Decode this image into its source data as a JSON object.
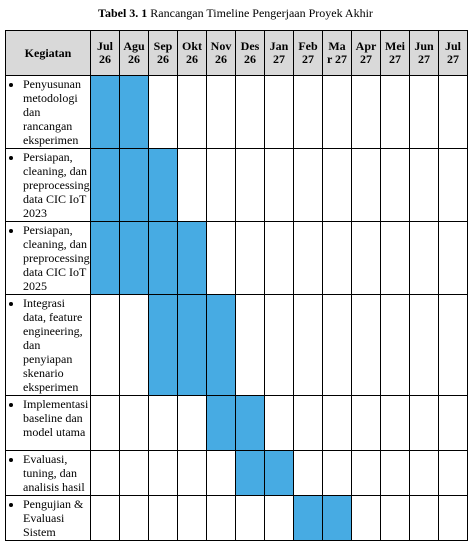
{
  "caption": {
    "label": "Tabel 3. 1",
    "title": "Rancangan Timeline Pengerjaan Proyek Akhir"
  },
  "table": {
    "header": "Kegiatan",
    "months": [
      "Jul 26",
      "Agu 26",
      "Sep 26",
      "Okt 26",
      "Nov 26",
      "Des 26",
      "Jan 27",
      "Feb 27",
      "Mar 27",
      "Apr 27",
      "Mei 27",
      "Jun 27",
      "Jul 27"
    ],
    "fill_color": "#47abe3",
    "rows": [
      {
        "activity": "Penyusunan metodologi dan rancangan eksperimen",
        "cells": [
          true,
          true,
          false,
          false,
          false,
          false,
          false,
          false,
          false,
          false,
          false,
          false,
          false
        ]
      },
      {
        "activity": "Persiapan, cleaning, dan preprocessing data CIC IoT 2023",
        "cells": [
          true,
          true,
          true,
          false,
          false,
          false,
          false,
          false,
          false,
          false,
          false,
          false,
          false
        ]
      },
      {
        "activity": "Persiapan, cleaning, dan preprocessing data CIC IoT 2025",
        "cells": [
          true,
          true,
          true,
          true,
          false,
          false,
          false,
          false,
          false,
          false,
          false,
          false,
          false
        ]
      },
      {
        "activity": "Integrasi data, feature engineering, dan penyiapan skenario eksperimen",
        "cells": [
          false,
          false,
          true,
          true,
          true,
          false,
          false,
          false,
          false,
          false,
          false,
          false,
          false
        ]
      },
      {
        "activity": "Implementasi baseline dan model utama",
        "cells": [
          false,
          false,
          false,
          false,
          true,
          true,
          false,
          false,
          false,
          false,
          false,
          false,
          false
        ]
      },
      {
        "activity": "Evaluasi, tuning, dan analisis hasil",
        "cells": [
          false,
          false,
          false,
          false,
          false,
          true,
          true,
          false,
          false,
          false,
          false,
          false,
          false
        ]
      },
      {
        "activity": "Pengujian & Evaluasi Sistem",
        "cells": [
          false,
          false,
          false,
          false,
          false,
          false,
          false,
          true,
          true,
          false,
          false,
          false,
          false
        ]
      }
    ]
  }
}
